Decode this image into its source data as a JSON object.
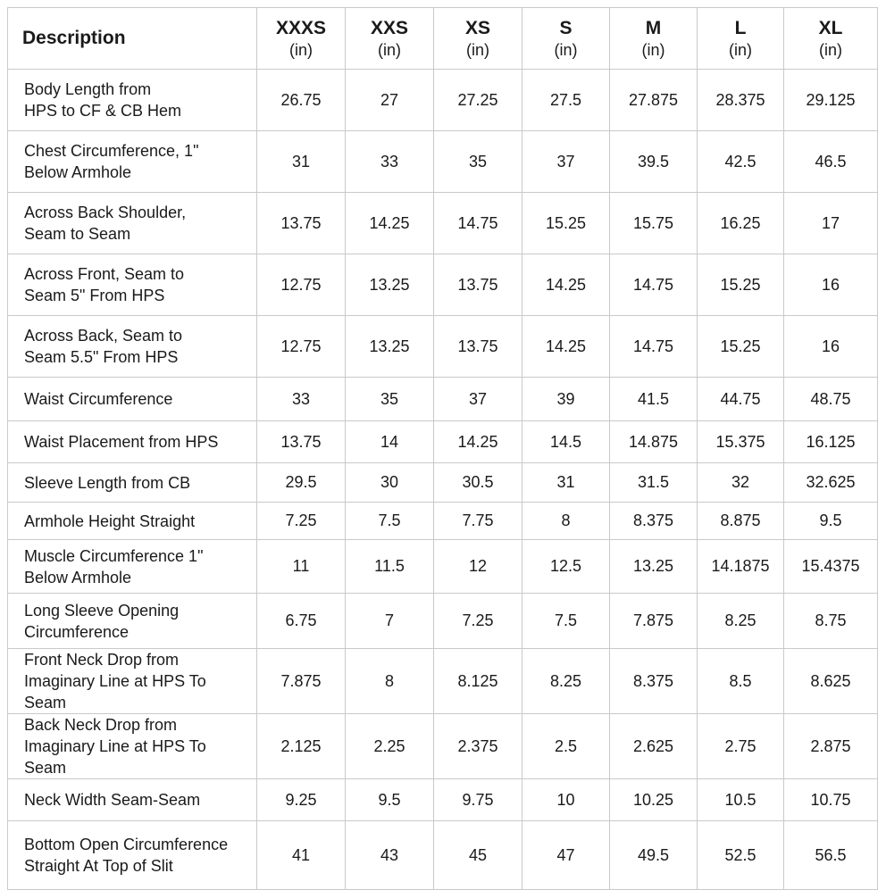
{
  "header": {
    "description_label": "Description",
    "unit": "(in)",
    "sizes": [
      "XXXS",
      "XXS",
      "XS",
      "S",
      "M",
      "L",
      "XL"
    ]
  },
  "rows": [
    {
      "desc": [
        "Body Length from",
        "HPS to CF & CB Hem"
      ],
      "values": [
        "26.75",
        "27",
        "27.25",
        "27.5",
        "27.875",
        "28.375",
        "29.125"
      ]
    },
    {
      "desc": [
        "Chest Circumference, 1\"",
        "Below Armhole"
      ],
      "values": [
        "31",
        "33",
        "35",
        "37",
        "39.5",
        "42.5",
        "46.5"
      ]
    },
    {
      "desc": [
        "Across Back Shoulder,",
        "Seam to Seam"
      ],
      "values": [
        "13.75",
        "14.25",
        "14.75",
        "15.25",
        "15.75",
        "16.25",
        "17"
      ]
    },
    {
      "desc": [
        "Across Front, Seam to",
        "Seam 5\"  From HPS"
      ],
      "values": [
        "12.75",
        "13.25",
        "13.75",
        "14.25",
        "14.75",
        "15.25",
        "16"
      ]
    },
    {
      "desc": [
        "Across Back, Seam to",
        "Seam 5.5\"  From HPS"
      ],
      "values": [
        "12.75",
        "13.25",
        "13.75",
        "14.25",
        "14.75",
        "15.25",
        "16"
      ]
    },
    {
      "desc": [
        "Waist Circumference"
      ],
      "values": [
        "33",
        "35",
        "37",
        "39",
        "41.5",
        "44.75",
        "48.75"
      ]
    },
    {
      "desc": [
        "Waist Placement from HPS"
      ],
      "values": [
        "13.75",
        "14",
        "14.25",
        "14.5",
        "14.875",
        "15.375",
        "16.125"
      ]
    },
    {
      "desc": [
        "Sleeve Length from CB"
      ],
      "values": [
        "29.5",
        "30",
        "30.5",
        "31",
        "31.5",
        "32",
        "32.625"
      ]
    },
    {
      "desc": [
        "Armhole Height Straight"
      ],
      "values": [
        "7.25",
        "7.5",
        "7.75",
        "8",
        "8.375",
        "8.875",
        "9.5"
      ]
    },
    {
      "desc": [
        "Muscle Circumference 1\"",
        "Below Armhole"
      ],
      "values": [
        "11",
        "11.5",
        "12",
        "12.5",
        "13.25",
        "14.1875",
        "15.4375"
      ]
    },
    {
      "desc": [
        "Long Sleeve Opening",
        "Circumference"
      ],
      "values": [
        "6.75",
        "7",
        "7.25",
        "7.5",
        "7.875",
        "8.25",
        "8.75"
      ]
    },
    {
      "desc": [
        "Front Neck Drop from",
        "Imaginary Line at HPS To Seam"
      ],
      "values": [
        "7.875",
        "8",
        "8.125",
        "8.25",
        "8.375",
        "8.5",
        "8.625"
      ]
    },
    {
      "desc": [
        "Back Neck Drop from",
        "Imaginary Line at HPS To Seam"
      ],
      "values": [
        "2.125",
        "2.25",
        "2.375",
        "2.5",
        "2.625",
        "2.75",
        "2.875"
      ]
    },
    {
      "desc": [
        "Neck Width Seam-Seam"
      ],
      "values": [
        "9.25",
        "9.5",
        "9.75",
        "10",
        "10.25",
        "10.5",
        "10.75"
      ]
    },
    {
      "desc": [
        "Bottom Open Circumference",
        "Straight At Top of Slit"
      ],
      "values": [
        "41",
        "43",
        "45",
        "47",
        "49.5",
        "52.5",
        "56.5"
      ]
    }
  ]
}
